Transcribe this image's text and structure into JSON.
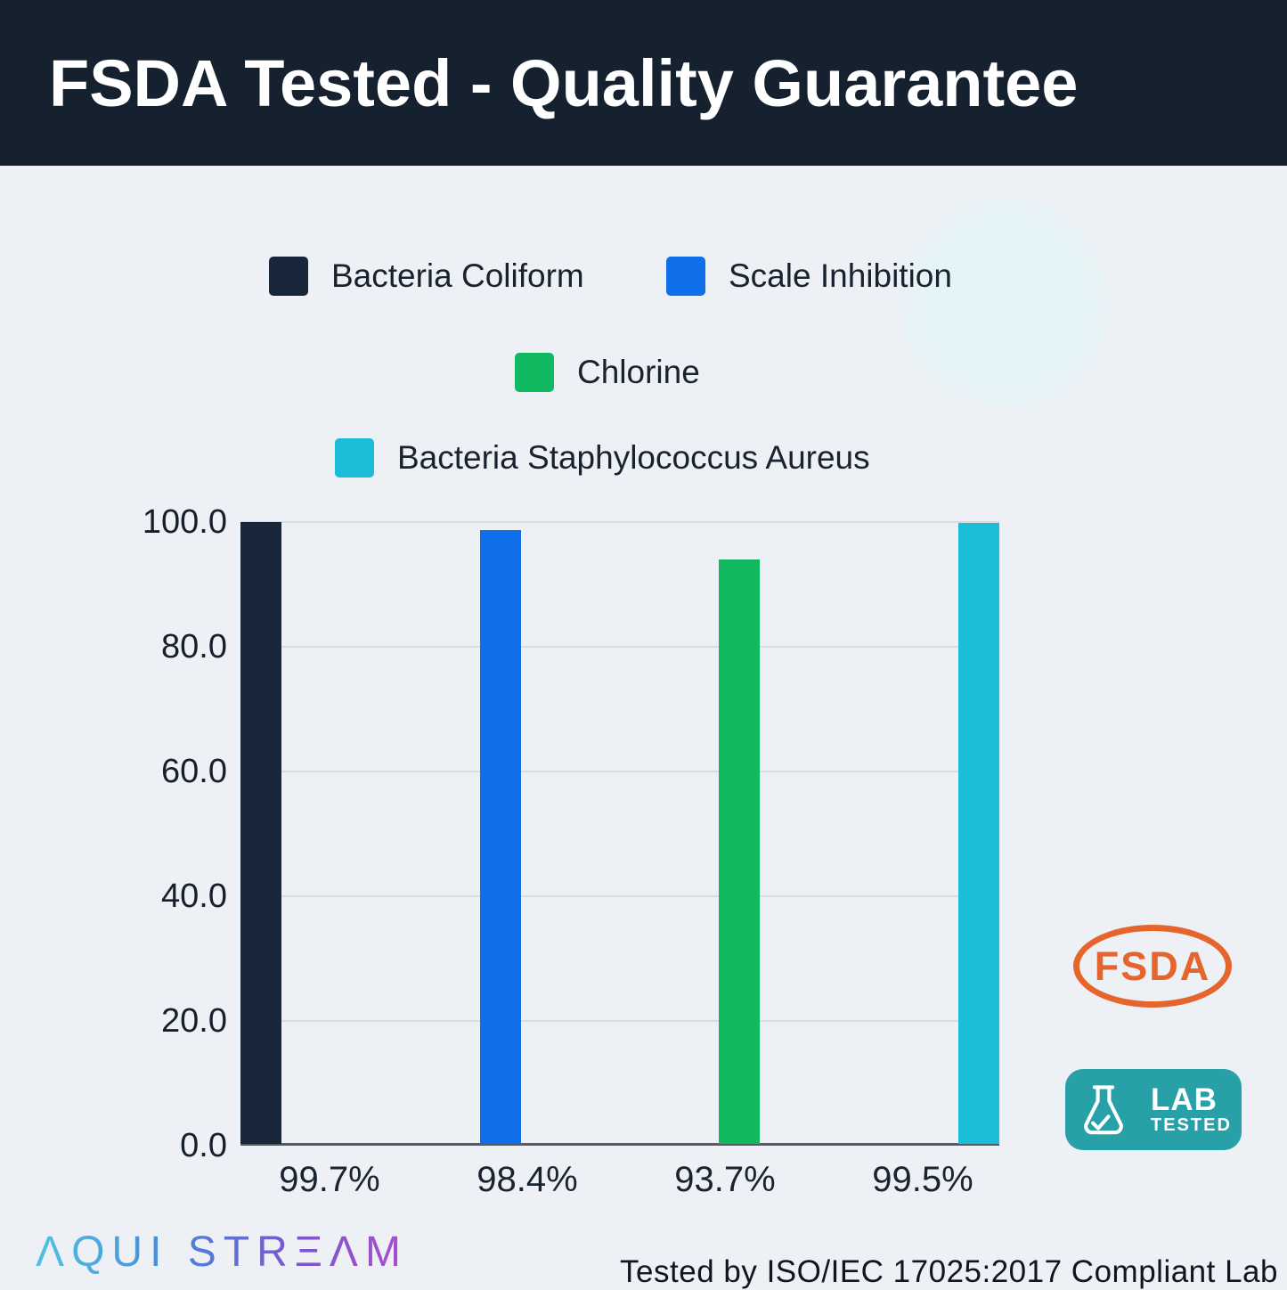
{
  "header": {
    "title": "FSDA Tested - Quality Guarantee"
  },
  "legend": [
    {
      "label": "Bacteria Coliform"
    },
    {
      "label": "Scale Inhibition"
    },
    {
      "label": "Chlorine"
    },
    {
      "label": "Bacteria Staphylococcus Aureus"
    }
  ],
  "chart_data": {
    "type": "bar",
    "categories": [
      "Bacteria Coliform",
      "Scale Inhibition",
      "Chlorine",
      "Bacteria Staphylococcus Aureus"
    ],
    "values": [
      99.7,
      98.4,
      93.7,
      99.5
    ],
    "x_tick_labels": [
      "99.7%",
      "98.4%",
      "93.7%",
      "99.5%"
    ],
    "bar_colors": [
      "#172739",
      "#0f6fe8",
      "#10b95f",
      "#1bbdd8"
    ],
    "y_ticks": [
      0,
      20,
      40,
      60,
      80,
      100
    ],
    "y_tick_labels": [
      "0.0",
      "20.0",
      "40.0",
      "60.0",
      "80.0",
      "100.0"
    ],
    "ylim": [
      0,
      100
    ],
    "grid": true,
    "legend_position": "top",
    "title": "FSDA Tested - Quality Guarantee"
  },
  "badges": {
    "fsda": {
      "label": "FSDA",
      "color": "#e5652c"
    },
    "lab": {
      "line1": "LAB",
      "line2": "TESTED",
      "bg": "#27a1a7"
    }
  },
  "footer": {
    "brand": "AQUI STREAM",
    "brand_display": "ΛQUI STRΞΛM",
    "note": "Tested by ISO/IEC 17025:2017 Compliant Lab"
  }
}
